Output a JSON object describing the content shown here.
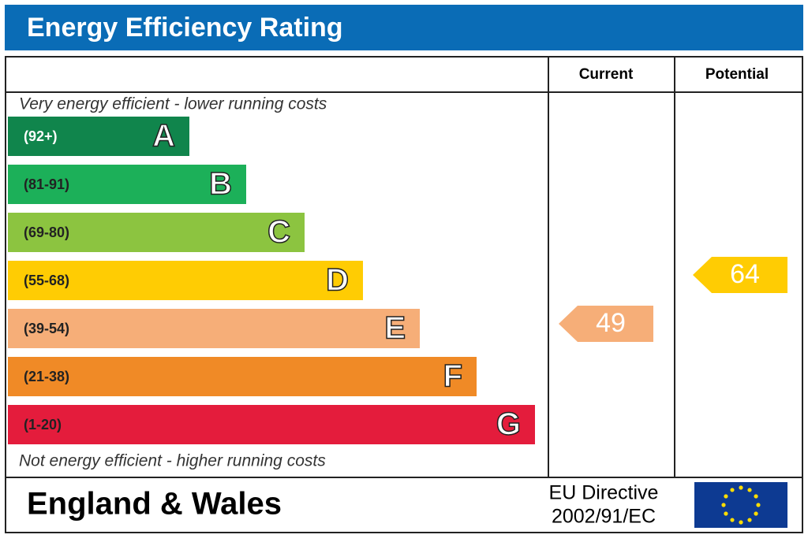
{
  "title": "Energy Efficiency Rating",
  "columns": [
    "Current",
    "Potential"
  ],
  "top_note": "Very energy efficient - lower running costs",
  "bands": [
    {
      "range": "(92+)",
      "letter": "A",
      "color": "#10854c"
    },
    {
      "range": "(81-91)",
      "letter": "B",
      "color": "#1cb059"
    },
    {
      "range": "(69-80)",
      "letter": "C",
      "color": "#8cc440"
    },
    {
      "range": "(55-68)",
      "letter": "D",
      "color": "#ffcc03"
    },
    {
      "range": "(39-54)",
      "letter": "E",
      "color": "#f6ae78"
    },
    {
      "range": "(21-38)",
      "letter": "F",
      "color": "#f08a26"
    },
    {
      "range": "(1-20)",
      "letter": "G",
      "color": "#e41c3c"
    }
  ],
  "bottom_note": "Not energy efficient - higher running costs",
  "current": {
    "value": "49",
    "color": "#f6ae78"
  },
  "potential": {
    "value": "64",
    "color": "#ffcc03"
  },
  "footer": {
    "region": "England & Wales",
    "directive": [
      "EU Directive",
      "2002/91/EC"
    ]
  }
}
